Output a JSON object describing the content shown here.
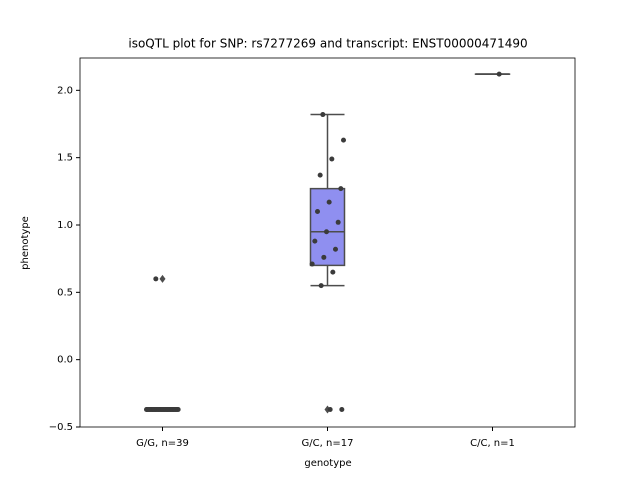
{
  "chart_data": {
    "type": "box",
    "title": "isoQTL plot for SNP: rs7277269 and transcript: ENST00000471490",
    "x_label": "genotype",
    "y_label": "phenotype",
    "categories": [
      "G/G, n=39",
      "G/C, n=17",
      "C/C, n=1"
    ],
    "ylim": [
      -0.5,
      2.24
    ],
    "yticks": [
      {
        "value": -0.5,
        "label": "−0.5"
      },
      {
        "value": 0,
        "label": "0.0"
      },
      {
        "value": 0.5,
        "label": "0.5"
      },
      {
        "value": 1,
        "label": "1.0"
      },
      {
        "value": 1.5,
        "label": "1.5"
      },
      {
        "value": 2,
        "label": "2.0"
      }
    ],
    "box_color": "#8f8ff0",
    "edge_color": "#4d4d4d",
    "point_color": "#3b3b3b",
    "boxes": [
      {
        "whislo": -0.37,
        "q1": -0.37,
        "median": -0.37,
        "q3": -0.37,
        "whishi": -0.37,
        "fliers": [
          0.6
        ]
      },
      {
        "whislo": 0.55,
        "q1": 0.7,
        "median": 0.95,
        "q3": 1.27,
        "whishi": 1.82,
        "fliers": [
          -0.37
        ]
      },
      {
        "whislo": 2.12,
        "q1": 2.12,
        "median": 2.12,
        "q3": 2.12,
        "whishi": 2.12,
        "fliers": []
      }
    ],
    "series": [
      {
        "values": [
          -0.37,
          -0.37,
          -0.37,
          -0.37,
          -0.37,
          -0.37,
          -0.37,
          -0.37,
          -0.37,
          -0.37,
          -0.37,
          -0.37,
          -0.37,
          -0.37,
          -0.37,
          -0.37,
          -0.37,
          -0.37,
          -0.37,
          -0.37,
          -0.37,
          -0.37,
          -0.37,
          -0.37,
          -0.37,
          -0.37,
          -0.37,
          -0.37,
          -0.37,
          -0.37,
          -0.37,
          -0.37,
          -0.37,
          -0.37,
          -0.37,
          -0.37,
          -0.37,
          -0.37,
          0.6
        ]
      },
      {
        "values": [
          1.82,
          1.63,
          1.49,
          1.37,
          1.27,
          1.17,
          1.1,
          1.02,
          0.95,
          0.88,
          0.82,
          0.76,
          0.71,
          0.65,
          0.55,
          -0.37,
          -0.37
        ]
      },
      {
        "values": [
          2.12
        ]
      }
    ]
  }
}
